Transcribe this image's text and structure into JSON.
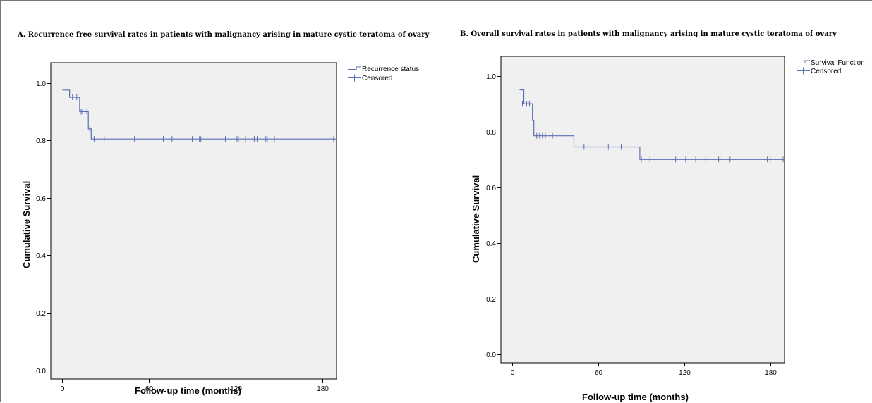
{
  "chart_data": [
    {
      "type": "line",
      "subtype": "kaplan-meier",
      "title": "A. Recurrence free survival rates  in patients with malignancy arising in mature cystic teratoma of ovary",
      "xlabel": "Follow-up time (months)",
      "ylabel": "Cumulative Survival",
      "xlim": [
        -8,
        190
      ],
      "ylim": [
        -0.03,
        1.07
      ],
      "xticks": [
        0,
        60,
        120,
        180
      ],
      "xtick_labels": [
        "0",
        "60",
        "120",
        "180"
      ],
      "yticks": [
        0.0,
        0.2,
        0.4,
        0.6,
        0.8,
        1.0
      ],
      "ytick_labels": [
        "0.0",
        "0.2",
        "0.4",
        "0.6",
        "0.8",
        "1.0"
      ],
      "legend": [
        "Recurrence status",
        "Censored"
      ],
      "legend_position": "right",
      "steps": [
        [
          0,
          0.975
        ],
        [
          5,
          0.95
        ],
        [
          12,
          0.9
        ],
        [
          18,
          0.84
        ],
        [
          20,
          0.805
        ],
        [
          190,
          0.805
        ]
      ],
      "censored": [
        [
          7,
          0.95
        ],
        [
          10,
          0.95
        ],
        [
          13,
          0.9
        ],
        [
          14,
          0.9
        ],
        [
          17,
          0.9
        ],
        [
          19,
          0.84
        ],
        [
          22,
          0.805
        ],
        [
          24,
          0.805
        ],
        [
          29,
          0.805
        ],
        [
          50,
          0.805
        ],
        [
          70,
          0.805
        ],
        [
          76,
          0.805
        ],
        [
          90,
          0.805
        ],
        [
          95,
          0.805
        ],
        [
          96,
          0.805
        ],
        [
          113,
          0.805
        ],
        [
          121,
          0.805
        ],
        [
          122,
          0.805
        ],
        [
          127,
          0.805
        ],
        [
          133,
          0.805
        ],
        [
          135,
          0.805
        ],
        [
          141,
          0.805
        ],
        [
          142,
          0.805
        ],
        [
          147,
          0.805
        ],
        [
          180,
          0.805
        ],
        [
          188,
          0.805
        ]
      ],
      "line_color": "#5a6fb5",
      "plot_background": "#f0f0f0"
    },
    {
      "type": "line",
      "subtype": "kaplan-meier",
      "title": "B. Overall survival  rates in patients with malignancy arising in mature cystic teratoma of ovary",
      "xlabel": "Follow-up time (months)",
      "ylabel": "Cumulative Survival",
      "xlim": [
        -8,
        190
      ],
      "ylim": [
        -0.03,
        1.07
      ],
      "xticks": [
        0,
        60,
        120,
        180
      ],
      "xtick_labels": [
        "0",
        "60",
        "120",
        "180"
      ],
      "yticks": [
        0.0,
        0.2,
        0.4,
        0.6,
        0.8,
        1.0
      ],
      "ytick_labels": [
        "0.0",
        "0.2",
        "0.4",
        "0.6",
        "0.8",
        "1.0"
      ],
      "legend": [
        "Survival Function",
        "Censored"
      ],
      "legend_position": "right",
      "steps": [
        [
          5,
          0.95
        ],
        [
          8,
          0.9
        ],
        [
          14,
          0.84
        ],
        [
          15,
          0.785
        ],
        [
          43,
          0.745
        ],
        [
          89,
          0.7
        ],
        [
          190,
          0.7
        ]
      ],
      "censored": [
        [
          7,
          0.9
        ],
        [
          10,
          0.9
        ],
        [
          11,
          0.9
        ],
        [
          12,
          0.9
        ],
        [
          17,
          0.785
        ],
        [
          19,
          0.785
        ],
        [
          21,
          0.785
        ],
        [
          23,
          0.785
        ],
        [
          28,
          0.785
        ],
        [
          50,
          0.745
        ],
        [
          67,
          0.745
        ],
        [
          76,
          0.745
        ],
        [
          90,
          0.7
        ],
        [
          96,
          0.7
        ],
        [
          114,
          0.7
        ],
        [
          121,
          0.7
        ],
        [
          128,
          0.7
        ],
        [
          135,
          0.7
        ],
        [
          144,
          0.7
        ],
        [
          145,
          0.7
        ],
        [
          152,
          0.7
        ],
        [
          178,
          0.7
        ],
        [
          180,
          0.7
        ],
        [
          189,
          0.7
        ]
      ],
      "line_color": "#5a6fb5",
      "plot_background": "#f0f0f0"
    }
  ]
}
